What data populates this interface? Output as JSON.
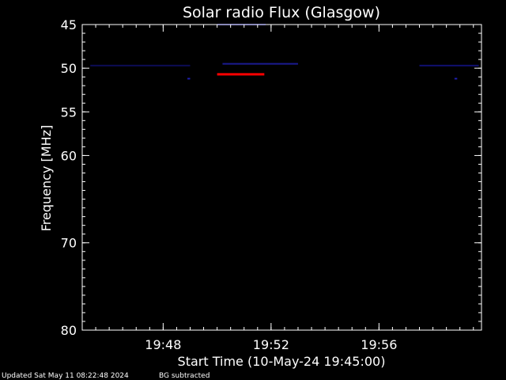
{
  "chart_data": {
    "type": "heatmap",
    "title": "Solar radio Flux (Glasgow)",
    "xlabel": "Start Time (10-May-24 19:45:00)",
    "ylabel": "Frequency [MHz]",
    "x_range_min": [
      0,
      14.8
    ],
    "x_ticks": [
      {
        "label": "19:48",
        "minutes": 3
      },
      {
        "label": "19:52",
        "minutes": 7
      },
      {
        "label": "19:56",
        "minutes": 11
      }
    ],
    "ylim": [
      45,
      80
    ],
    "y_ticks": [
      45,
      50,
      55,
      60,
      70,
      80
    ],
    "background_color": "#000000",
    "axis_color": "#ffffff",
    "features": [
      {
        "kind": "burst",
        "color": "#ff0000",
        "freq_mhz": 50.7,
        "start_min": 5.0,
        "end_min": 6.75
      },
      {
        "kind": "faint-band",
        "color": "#1a1a90",
        "freq_mhz": 49.5,
        "start_min": 5.2,
        "end_min": 8.0
      },
      {
        "kind": "faint-band",
        "color": "#101070",
        "freq_mhz": 45.0,
        "start_min": 5.0,
        "end_min": 6.8
      },
      {
        "kind": "faint-band",
        "color": "#101070",
        "freq_mhz": 49.7,
        "start_min": 12.5,
        "end_min": 14.7
      },
      {
        "kind": "faint-band",
        "color": "#0c0c55",
        "freq_mhz": 49.7,
        "start_min": 0.3,
        "end_min": 4.0
      },
      {
        "kind": "faint-spot",
        "color": "#2020b0",
        "freq_mhz": 51.2,
        "start_min": 3.9,
        "end_min": 4.0
      },
      {
        "kind": "faint-spot",
        "color": "#2020b0",
        "freq_mhz": 51.2,
        "start_min": 13.8,
        "end_min": 13.9
      }
    ]
  },
  "footer": {
    "updated": "Updated Sat May 11 08:22:48 2024",
    "note": "BG subtracted"
  }
}
